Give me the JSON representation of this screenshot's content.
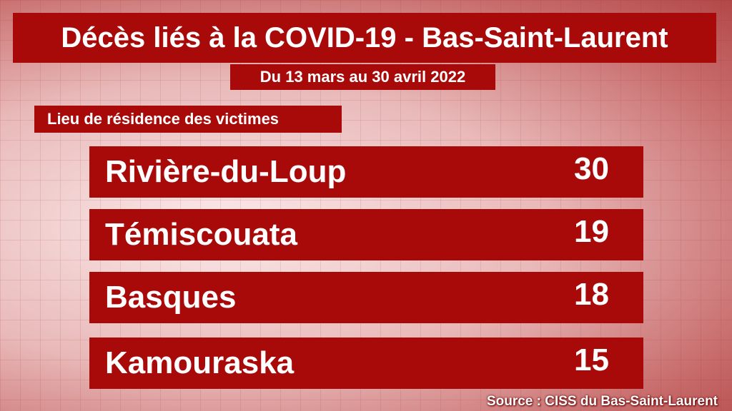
{
  "title": "Décès liés à la COVID-19 - Bas-Saint-Laurent",
  "subtitle": "Du 13 mars au 30 avril 2022",
  "section_label": "Lieu de résidence des victimes",
  "table": {
    "rows": [
      {
        "name": "Rivière-du-Loup",
        "value": 30
      },
      {
        "name": "Témiscouata",
        "value": 19
      },
      {
        "name": "Basques",
        "value": 18
      },
      {
        "name": "Kamouraska",
        "value": 15
      }
    ]
  },
  "source": "Source : CISS du Bas-Saint-Laurent"
}
